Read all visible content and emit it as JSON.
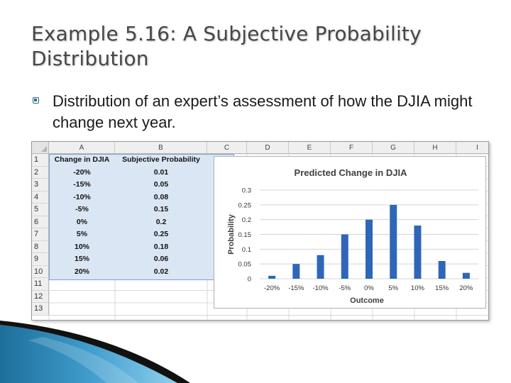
{
  "slide": {
    "title": "Example 5.16: A Subjective Probability Distribution",
    "bullet": "Distribution of an expert’s assessment of how the DJIA might change next year."
  },
  "spreadsheet": {
    "columns": [
      "A",
      "B",
      "C",
      "D",
      "E",
      "F",
      "G",
      "H",
      "I"
    ],
    "rows": [
      "1",
      "2",
      "3",
      "4",
      "5",
      "6",
      "7",
      "8",
      "9",
      "10",
      "11",
      "12",
      "13"
    ],
    "headers": [
      "Change in DJIA",
      "Subjective Probability"
    ],
    "data": [
      [
        "-20%",
        "0.01"
      ],
      [
        "-15%",
        "0.05"
      ],
      [
        "-10%",
        "0.08"
      ],
      [
        "-5%",
        "0.15"
      ],
      [
        "0%",
        "0.2"
      ],
      [
        "5%",
        "0.25"
      ],
      [
        "10%",
        "0.18"
      ],
      [
        "15%",
        "0.06"
      ],
      [
        "20%",
        "0.02"
      ]
    ]
  },
  "chart_data": {
    "type": "bar",
    "title": "Predicted Change in DJIA",
    "xlabel": "Outcome",
    "ylabel": "Probability",
    "categories": [
      "-20%",
      "-15%",
      "-10%",
      "-5%",
      "0%",
      "5%",
      "10%",
      "15%",
      "20%"
    ],
    "values": [
      0.01,
      0.05,
      0.08,
      0.15,
      0.2,
      0.25,
      0.18,
      0.06,
      0.02
    ],
    "ylim": [
      0,
      0.3
    ],
    "yticks": [
      "0",
      "0.05",
      "0.1",
      "0.15",
      "0.2",
      "0.25",
      "0.3"
    ],
    "grid": true,
    "legend": "none",
    "bar_color": "#2f66b8"
  },
  "theme": {
    "accent": "#2e6b8c",
    "selection": "#dbe6f4"
  }
}
